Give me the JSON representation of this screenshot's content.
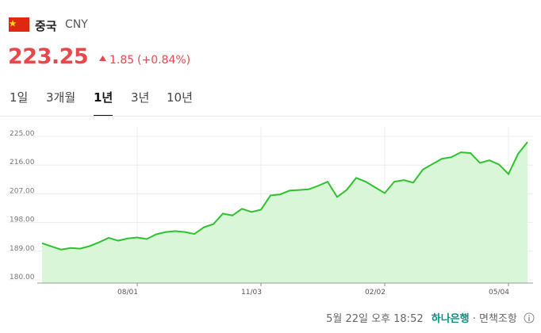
{
  "header": {
    "country": "중국",
    "currency": "CNY",
    "price": "223.25",
    "change": "1.85",
    "change_percent": "(+0.84%)"
  },
  "tabs": [
    "1일",
    "3개월",
    "1년",
    "3년",
    "10년"
  ],
  "selected_tab": 2,
  "chart_data": {
    "type": "line",
    "color": "#2fc22f",
    "fill": "#d9f6d9",
    "categories": [
      null,
      null,
      null,
      null,
      null,
      null,
      null,
      null,
      null,
      null,
      "08/01",
      null,
      null,
      null,
      null,
      null,
      null,
      null,
      null,
      null,
      null,
      null,
      null,
      "11/03",
      null,
      null,
      null,
      null,
      null,
      null,
      null,
      null,
      null,
      null,
      null,
      null,
      "02/02",
      null,
      null,
      null,
      null,
      null,
      null,
      null,
      null,
      null,
      null,
      null,
      null,
      "05/04",
      null,
      null
    ],
    "values": [
      191.5,
      190.5,
      189.5,
      190.0,
      189.8,
      190.6,
      191.8,
      193.2,
      192.3,
      193.0,
      193.3,
      192.8,
      194.3,
      195.0,
      195.3,
      195.0,
      194.4,
      196.5,
      197.5,
      200.8,
      200.2,
      202.3,
      201.3,
      202.0,
      206.5,
      206.8,
      208.0,
      208.2,
      208.4,
      209.5,
      210.8,
      206.0,
      208.2,
      212.0,
      210.8,
      209.0,
      207.2,
      210.8,
      211.3,
      210.5,
      214.6,
      216.3,
      218.0,
      218.5,
      220.0,
      219.8,
      216.7,
      217.5,
      216.2,
      213.2,
      219.5,
      223.25
    ],
    "ylim": [
      179,
      228
    ],
    "yticks": [
      {
        "value": 180,
        "label": "180.00"
      },
      {
        "value": 189,
        "label": "189.00"
      },
      {
        "value": 198,
        "label": "198.00"
      },
      {
        "value": 207,
        "label": "207.00"
      },
      {
        "value": 216,
        "label": "216.00"
      },
      {
        "value": 225,
        "label": "225.00"
      }
    ],
    "grid": true
  },
  "footer": {
    "timestamp": "5월 22일 오후 18:52",
    "source": "하나은행",
    "separator": "·",
    "disclaimer": "면책조항"
  }
}
